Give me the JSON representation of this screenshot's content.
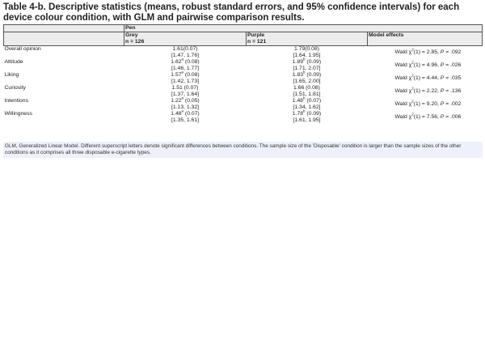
{
  "title": "Table 4-b. Descriptive statistics (means, robust standard errors, and 95% confidence intervals) for each device colour condition, with GLM and pairwise comparison results.",
  "header": {
    "group": "Pen",
    "columns": [
      {
        "label": "Grey",
        "n": "n = 126"
      },
      {
        "label": "Purple",
        "n": "n = 121"
      }
    ],
    "model_effects": "Model effects"
  },
  "rows": [
    {
      "label": "Overall opinion",
      "grey": {
        "mean": "1.61",
        "sup": "",
        "se": "(0.07)",
        "ci": "[1.47, 1.76]"
      },
      "purple": {
        "mean": "1.79",
        "sup": "",
        "se": "(0.08)",
        "ci": "[1.64, 1.95]"
      },
      "model": {
        "pre": "Wald χ",
        "sq": "2",
        "mid": "(1) = 2.85, ",
        "p": "P",
        "post": " = .092"
      }
    },
    {
      "label": "Attitude",
      "grey": {
        "mean": "1.62",
        "sup": "a",
        "se": " (0.08)",
        "ci": "[1.46, 1.77]"
      },
      "purple": {
        "mean": "1.89",
        "sup": "b",
        "se": " (0.09)",
        "ci": "[1.71, 2.07]"
      },
      "model": {
        "pre": "Wald χ",
        "sq": "2",
        "mid": "(1) = 4.96, ",
        "p": "P",
        "post": " = .026"
      }
    },
    {
      "label": "Liking",
      "grey": {
        "mean": "1.57",
        "sup": "a",
        "se": " (0.08)",
        "ci": "[1.42, 1.73]"
      },
      "purple": {
        "mean": "1.83",
        "sup": "b",
        "se": " (0.09)",
        "ci": "[1.65, 2.00]"
      },
      "model": {
        "pre": "Wald χ",
        "sq": "2",
        "mid": "(1) = 4.44, ",
        "p": "P",
        "post": " = .035"
      }
    },
    {
      "label": "Curiosity",
      "grey": {
        "mean": "1.51",
        "sup": "",
        "se": " (0.07)",
        "ci": "[1.37, 1.64]"
      },
      "purple": {
        "mean": "1.66",
        "sup": "",
        "se": " (0.08)",
        "ci": "[1.51, 1.81]"
      },
      "model": {
        "pre": "Wald χ",
        "sq": "2",
        "mid": "(1) = 2.22, ",
        "p": "P",
        "post": " = .136"
      }
    },
    {
      "label": "Intentions",
      "grey": {
        "mean": "1.22",
        "sup": "a",
        "se": " (0.05)",
        "ci": "[1.13, 1.32]"
      },
      "purple": {
        "mean": "1.48",
        "sup": "b",
        "se": " (0.07)",
        "ci": "[1.34, 1.62]"
      },
      "model": {
        "pre": "Wald χ",
        "sq": "2",
        "mid": "(1) = 9.20, ",
        "p": "P",
        "post": " = .002"
      }
    },
    {
      "label": "Willingness",
      "grey": {
        "mean": "1.48",
        "sup": "a",
        "se": " (0.07)",
        "ci": "[1.35, 1.61]"
      },
      "purple": {
        "mean": "1.78",
        "sup": "b",
        "se": " (0.09)",
        "ci": "[1.61, 1.95]"
      },
      "model": {
        "pre": "Wald χ",
        "sq": "2",
        "mid": "(1) = 7.56, ",
        "p": "P",
        "post": " = .006"
      }
    }
  ],
  "footnote": "GLM, Generalized Linear Model. Different superscript letters denote significant differences between conditions. The sample size of the 'Disposable' condition is larger than the sample sizes of the other conditions as it comprises all three disposable e-cigarette types."
}
